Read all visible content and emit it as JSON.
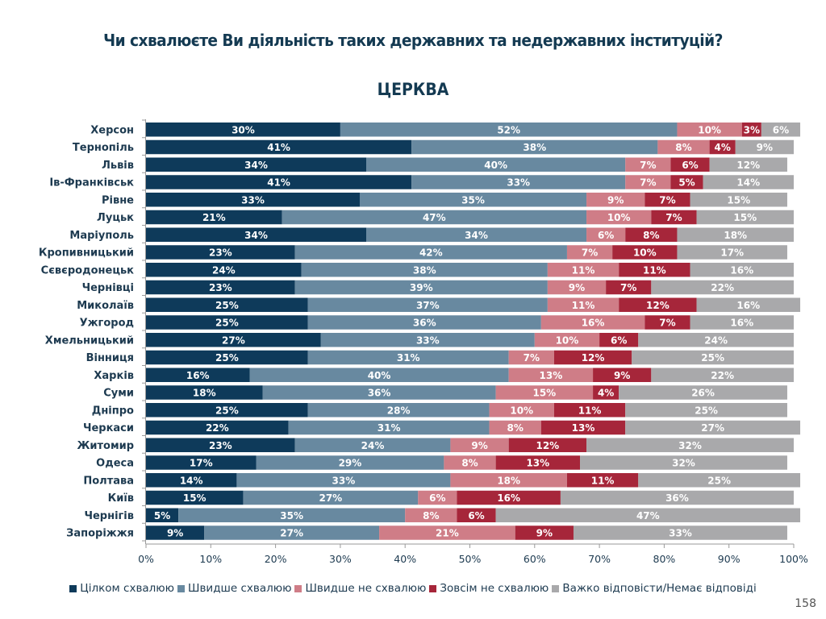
{
  "header": {
    "title": "Чи схвалюєте Ви діяльність таких державних та недержавних інституцій?",
    "subtitle": "ЦЕРКВА"
  },
  "page_number": "158",
  "colors": {
    "series": [
      "#0e3a5a",
      "#6889a0",
      "#cf7d87",
      "#a6263a",
      "#a9a9ab"
    ],
    "text": "#1d3a50",
    "title": "#143a52"
  },
  "chart_data": {
    "type": "bar",
    "orientation": "horizontal",
    "stacked": "percent",
    "title": "ЦЕРКВА",
    "xlabel": "",
    "ylabel": "",
    "xlim": [
      0,
      100
    ],
    "x_ticks": [
      "0%",
      "10%",
      "20%",
      "30%",
      "40%",
      "50%",
      "60%",
      "70%",
      "80%",
      "90%",
      "100%"
    ],
    "grid": false,
    "legend_position": "bottom",
    "categories": [
      "Херсон",
      "Тернопіль",
      "Львів",
      "Ів-Франківськ",
      "Рівне",
      "Луцьк",
      "Маріуполь",
      "Кропивницький",
      "Сєвєродонецьк",
      "Чернівці",
      "Миколаїв",
      "Ужгород",
      "Хмельницький",
      "Вінниця",
      "Харків",
      "Суми",
      "Дніпро",
      "Черкаси",
      "Житомир",
      "Одеса",
      "Полтава",
      "Київ",
      "Чернігів",
      "Запоріжжя"
    ],
    "series": [
      {
        "name": "Цілком схвалюю",
        "values": [
          30,
          41,
          34,
          41,
          33,
          21,
          34,
          23,
          24,
          23,
          25,
          25,
          27,
          25,
          16,
          18,
          25,
          22,
          23,
          17,
          14,
          15,
          5,
          9
        ]
      },
      {
        "name": "Швидше схвалюю",
        "values": [
          52,
          38,
          40,
          33,
          35,
          47,
          34,
          42,
          38,
          39,
          37,
          36,
          33,
          31,
          40,
          36,
          28,
          31,
          24,
          29,
          33,
          27,
          35,
          27
        ]
      },
      {
        "name": "Швидше не схвалюю",
        "values": [
          10,
          8,
          7,
          7,
          9,
          10,
          6,
          7,
          11,
          9,
          11,
          16,
          10,
          7,
          13,
          15,
          10,
          8,
          9,
          8,
          18,
          6,
          8,
          21
        ]
      },
      {
        "name": "Зовсім не схвалюю",
        "values": [
          3,
          4,
          6,
          5,
          7,
          7,
          8,
          10,
          11,
          7,
          12,
          7,
          6,
          12,
          9,
          4,
          11,
          13,
          12,
          13,
          11,
          16,
          6,
          9
        ]
      },
      {
        "name": "Важко відповісти/Немає відповіді",
        "values": [
          6,
          9,
          12,
          14,
          15,
          15,
          18,
          17,
          16,
          22,
          16,
          16,
          24,
          25,
          22,
          26,
          25,
          27,
          32,
          32,
          25,
          36,
          47,
          33
        ]
      }
    ]
  }
}
